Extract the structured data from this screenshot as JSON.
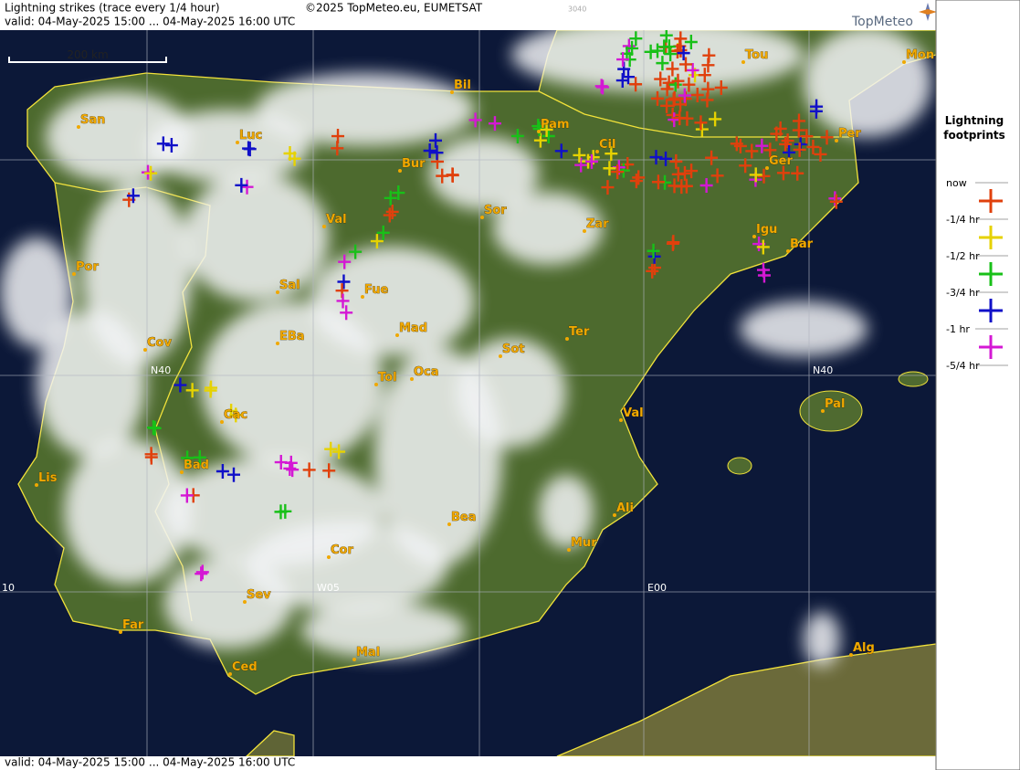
{
  "header": {
    "title": "Lightning strikes (trace every 1/4 hour)",
    "copyright": "©2025 TopMeteo.eu, EUMETSAT",
    "code": "3040",
    "valid": "valid:  04-May-2025 15:00 ... 04-May-2025 16:00 UTC"
  },
  "logo": "TopMeteo",
  "scale_bar": "200 km",
  "cities": [
    "San",
    "Luc",
    "Bil",
    "Pam",
    "Tou",
    "Mon",
    "Per",
    "Cil",
    "Ger",
    "Bur",
    "Sor",
    "Zar",
    "Val",
    "Igu",
    "Bar",
    "Por",
    "Sal",
    "Fue",
    "Mad",
    "Ter",
    "Cov",
    "EBa",
    "Sot",
    "Tol",
    "Oca",
    "Cac",
    "Val",
    "Pal",
    "Lis",
    "Bad",
    "Bea",
    "Ali",
    "Mur",
    "Cor",
    "Sev",
    "Far",
    "Mal",
    "Alg",
    "Ced"
  ],
  "grid_labels": [
    "N40",
    "N40",
    "W05",
    "E00",
    "10"
  ],
  "legend": {
    "title": "Lightning footprints",
    "items": [
      {
        "label": "now",
        "color": null
      },
      {
        "label": "-1/4 hr",
        "color": "#e0400c"
      },
      {
        "label": "-1/2 hr",
        "color": "#e6d200"
      },
      {
        "label": "-3/4 hr",
        "color": "#18c018"
      },
      {
        "label": "-1 hr",
        "color": "#1010c8"
      },
      {
        "label": "-5/4 hr",
        "color": "#d418d4"
      }
    ]
  },
  "footer": {
    "valid": "valid:  04-May-2025 15:00 ... 04-May-2025 16:00 UTC"
  }
}
